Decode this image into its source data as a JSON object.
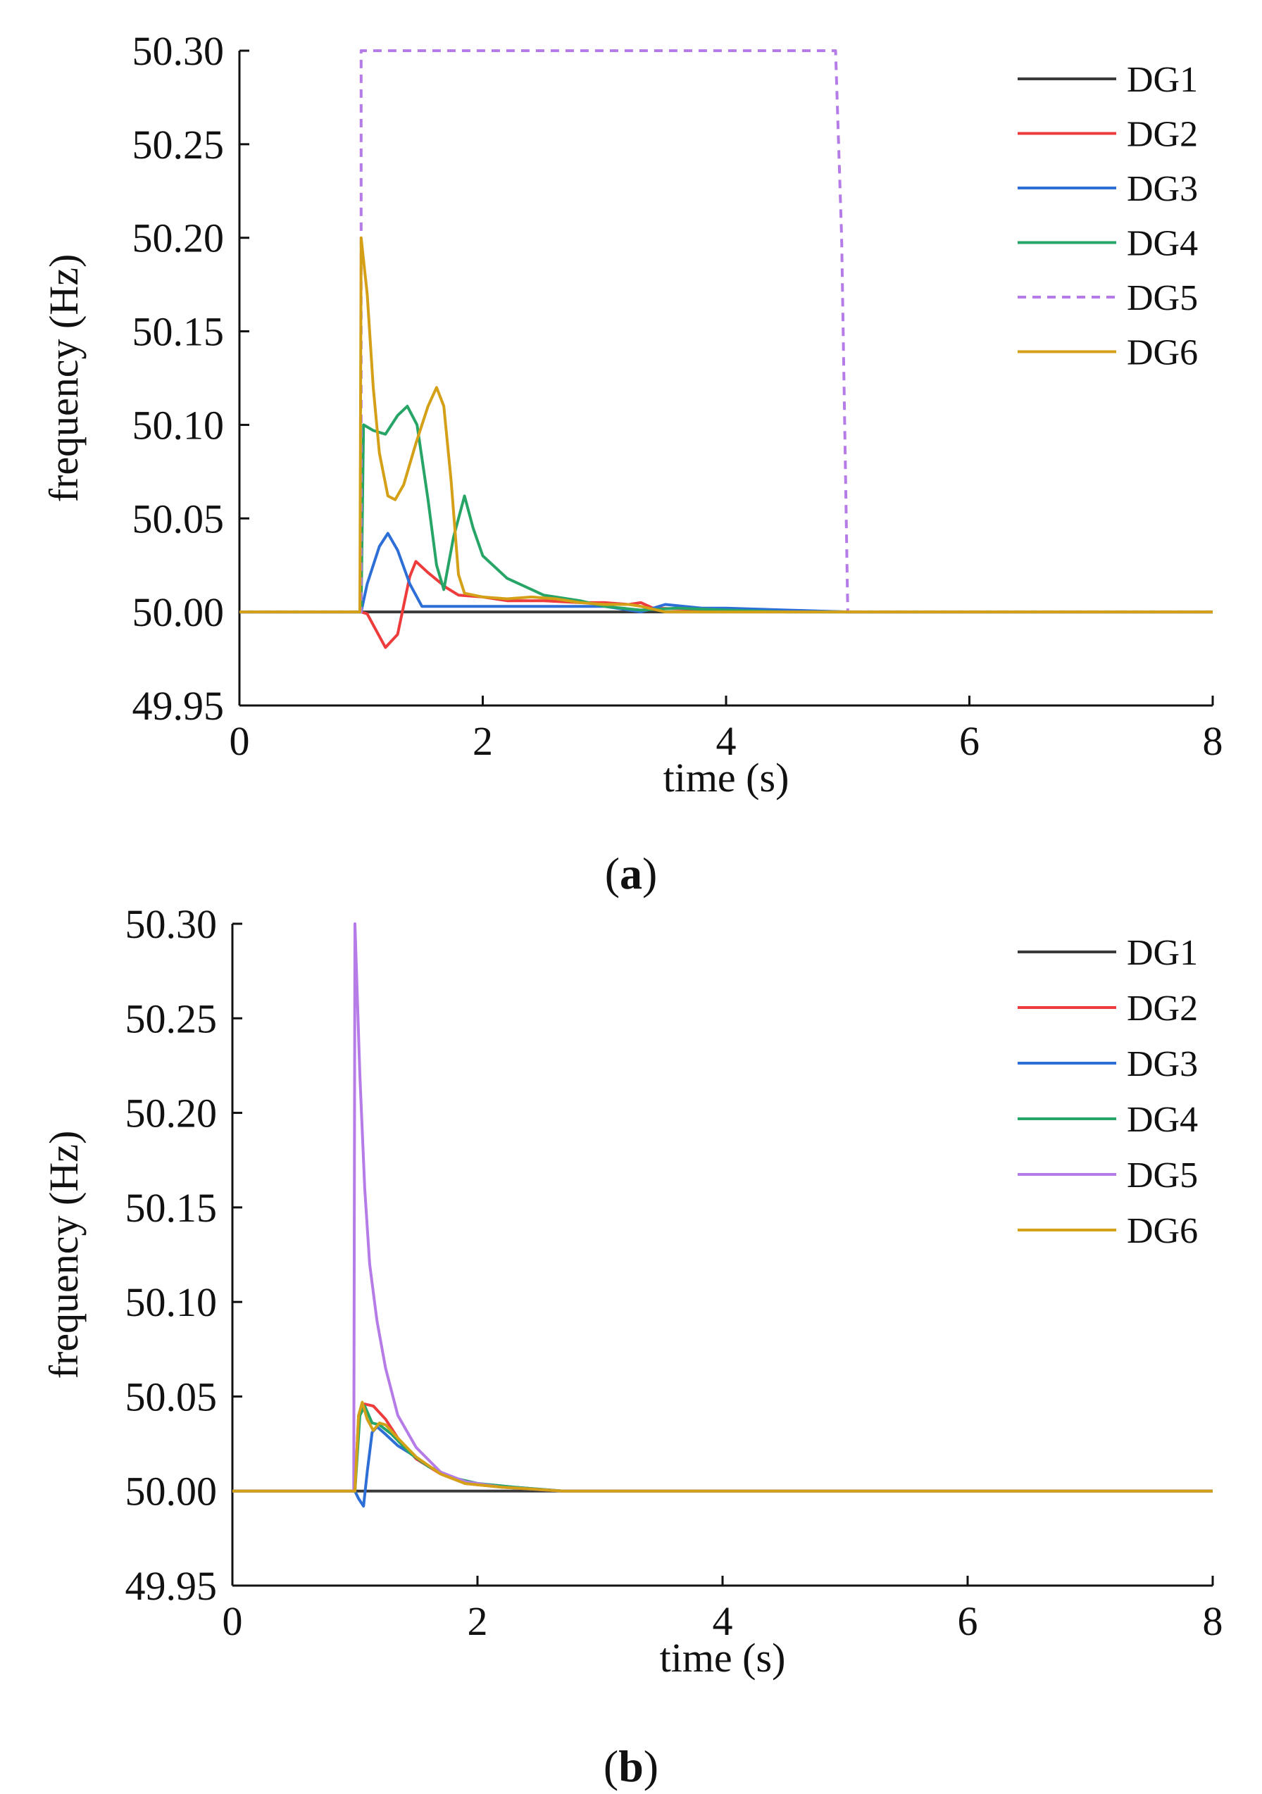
{
  "chart_data": [
    {
      "panel_label": "a",
      "type": "line",
      "xlabel": "time (s)",
      "ylabel": "frequency (Hz)",
      "xlim": [
        0,
        8
      ],
      "ylim": [
        49.95,
        50.3
      ],
      "x_ticks": [
        "0",
        "2",
        "4",
        "6",
        "8"
      ],
      "y_ticks": [
        "49.95",
        "50.00",
        "50.05",
        "50.10",
        "50.15",
        "50.20",
        "50.25",
        "50.30"
      ],
      "grid": false,
      "legend_position": "top-right",
      "series": [
        {
          "name": "DG1",
          "color": "#3a3a3a",
          "dash": "solid",
          "points": [
            [
              0,
              50.0
            ],
            [
              8,
              50.0
            ]
          ]
        },
        {
          "name": "DG2",
          "color": "#ee3b3b",
          "dash": "solid",
          "points": [
            [
              0,
              50.0
            ],
            [
              1.0,
              50.0
            ],
            [
              1.05,
              49.999
            ],
            [
              1.1,
              49.993
            ],
            [
              1.2,
              49.981
            ],
            [
              1.3,
              49.988
            ],
            [
              1.4,
              50.019
            ],
            [
              1.45,
              50.027
            ],
            [
              1.55,
              50.021
            ],
            [
              1.7,
              50.013
            ],
            [
              1.8,
              50.009
            ],
            [
              2.0,
              50.008
            ],
            [
              2.2,
              50.006
            ],
            [
              2.5,
              50.006
            ],
            [
              2.8,
              50.005
            ],
            [
              3.0,
              50.005
            ],
            [
              3.2,
              50.004
            ],
            [
              3.3,
              50.005
            ],
            [
              3.4,
              50.002
            ],
            [
              4.0,
              50.001
            ],
            [
              5.0,
              50.0
            ],
            [
              8,
              50.0
            ]
          ]
        },
        {
          "name": "DG3",
          "color": "#2d6fd6",
          "dash": "solid",
          "points": [
            [
              0,
              50.0
            ],
            [
              1.0,
              50.0
            ],
            [
              1.05,
              50.015
            ],
            [
              1.15,
              50.035
            ],
            [
              1.22,
              50.042
            ],
            [
              1.3,
              50.033
            ],
            [
              1.4,
              50.015
            ],
            [
              1.5,
              50.003
            ],
            [
              2.0,
              50.003
            ],
            [
              2.5,
              50.003
            ],
            [
              3.0,
              50.003
            ],
            [
              3.3,
              50.0
            ],
            [
              3.5,
              50.004
            ],
            [
              3.8,
              50.002
            ],
            [
              4.0,
              50.002
            ],
            [
              4.5,
              50.001
            ],
            [
              5.0,
              50.0
            ],
            [
              8,
              50.0
            ]
          ]
        },
        {
          "name": "DG4",
          "color": "#27a567",
          "dash": "solid",
          "points": [
            [
              0,
              50.0
            ],
            [
              1.0,
              50.0
            ],
            [
              1.02,
              50.1
            ],
            [
              1.1,
              50.097
            ],
            [
              1.2,
              50.095
            ],
            [
              1.3,
              50.105
            ],
            [
              1.38,
              50.11
            ],
            [
              1.46,
              50.1
            ],
            [
              1.55,
              50.06
            ],
            [
              1.62,
              50.025
            ],
            [
              1.68,
              50.012
            ],
            [
              1.76,
              50.04
            ],
            [
              1.85,
              50.062
            ],
            [
              1.92,
              50.045
            ],
            [
              2.0,
              50.03
            ],
            [
              2.2,
              50.018
            ],
            [
              2.5,
              50.009
            ],
            [
              2.8,
              50.006
            ],
            [
              3.0,
              50.003
            ],
            [
              3.3,
              50.001
            ],
            [
              3.6,
              50.002
            ],
            [
              4.0,
              50.001
            ],
            [
              4.5,
              50.0
            ],
            [
              8,
              50.0
            ]
          ]
        },
        {
          "name": "DG5",
          "color": "#b57be6",
          "dash": "dashed",
          "points": [
            [
              0,
              50.0
            ],
            [
              1.0,
              50.0
            ],
            [
              1.0,
              50.3
            ],
            [
              4.9,
              50.3
            ],
            [
              4.95,
              50.2
            ],
            [
              5.0,
              50.0
            ],
            [
              8,
              50.0
            ]
          ]
        },
        {
          "name": "DG6",
          "color": "#d4a017",
          "dash": "solid",
          "points": [
            [
              0,
              50.0
            ],
            [
              0.99,
              50.0
            ],
            [
              1.0,
              50.2
            ],
            [
              1.05,
              50.17
            ],
            [
              1.1,
              50.12
            ],
            [
              1.15,
              50.085
            ],
            [
              1.22,
              50.062
            ],
            [
              1.28,
              50.06
            ],
            [
              1.35,
              50.068
            ],
            [
              1.45,
              50.09
            ],
            [
              1.55,
              50.11
            ],
            [
              1.62,
              50.12
            ],
            [
              1.68,
              50.11
            ],
            [
              1.74,
              50.07
            ],
            [
              1.8,
              50.02
            ],
            [
              1.85,
              50.01
            ],
            [
              2.0,
              50.008
            ],
            [
              2.2,
              50.007
            ],
            [
              2.4,
              50.008
            ],
            [
              2.6,
              50.007
            ],
            [
              2.8,
              50.005
            ],
            [
              3.0,
              50.004
            ],
            [
              3.2,
              50.004
            ],
            [
              3.3,
              50.003
            ],
            [
              3.5,
              50.0
            ],
            [
              8,
              50.0
            ]
          ]
        }
      ]
    },
    {
      "panel_label": "b",
      "type": "line",
      "xlabel": "time (s)",
      "ylabel": "frequency (Hz)",
      "xlim": [
        0,
        8
      ],
      "ylim": [
        49.95,
        50.3
      ],
      "x_ticks": [
        "0",
        "2",
        "4",
        "6",
        "8"
      ],
      "y_ticks": [
        "49.95",
        "50.00",
        "50.05",
        "50.10",
        "50.15",
        "50.20",
        "50.25",
        "50.30"
      ],
      "grid": false,
      "legend_position": "top-right",
      "series": [
        {
          "name": "DG1",
          "color": "#3a3a3a",
          "dash": "solid",
          "points": [
            [
              0,
              50.0
            ],
            [
              8,
              50.0
            ]
          ]
        },
        {
          "name": "DG2",
          "color": "#ee3b3b",
          "dash": "solid",
          "points": [
            [
              0,
              50.0
            ],
            [
              1.0,
              50.0
            ],
            [
              1.03,
              50.04
            ],
            [
              1.08,
              50.046
            ],
            [
              1.15,
              50.045
            ],
            [
              1.25,
              50.038
            ],
            [
              1.35,
              50.028
            ],
            [
              1.5,
              50.017
            ],
            [
              1.7,
              50.009
            ],
            [
              1.9,
              50.004
            ],
            [
              2.2,
              50.002
            ],
            [
              2.7,
              50.0
            ],
            [
              8,
              50.0
            ]
          ]
        },
        {
          "name": "DG3",
          "color": "#2d6fd6",
          "dash": "solid",
          "points": [
            [
              0,
              50.0
            ],
            [
              1.0,
              50.0
            ],
            [
              1.03,
              49.996
            ],
            [
              1.07,
              49.992
            ],
            [
              1.1,
              50.01
            ],
            [
              1.14,
              50.031
            ],
            [
              1.18,
              50.034
            ],
            [
              1.25,
              50.03
            ],
            [
              1.35,
              50.024
            ],
            [
              1.45,
              50.02
            ],
            [
              1.6,
              50.013
            ],
            [
              1.8,
              50.007
            ],
            [
              2.0,
              50.004
            ],
            [
              2.3,
              50.002
            ],
            [
              2.7,
              50.0
            ],
            [
              8,
              50.0
            ]
          ]
        },
        {
          "name": "DG4",
          "color": "#27a567",
          "dash": "solid",
          "points": [
            [
              0,
              50.0
            ],
            [
              1.0,
              50.0
            ],
            [
              1.04,
              50.04
            ],
            [
              1.08,
              50.045
            ],
            [
              1.14,
              50.036
            ],
            [
              1.2,
              50.035
            ],
            [
              1.3,
              50.03
            ],
            [
              1.45,
              50.02
            ],
            [
              1.6,
              50.013
            ],
            [
              1.8,
              50.007
            ],
            [
              2.0,
              50.004
            ],
            [
              2.3,
              50.002
            ],
            [
              2.7,
              50.0
            ],
            [
              8,
              50.0
            ]
          ]
        },
        {
          "name": "DG5",
          "color": "#b57be6",
          "dash": "solid",
          "points": [
            [
              0,
              50.0
            ],
            [
              0.99,
              50.0
            ],
            [
              1.0,
              50.3
            ],
            [
              1.04,
              50.22
            ],
            [
              1.08,
              50.16
            ],
            [
              1.12,
              50.12
            ],
            [
              1.18,
              50.09
            ],
            [
              1.25,
              50.065
            ],
            [
              1.35,
              50.04
            ],
            [
              1.5,
              50.023
            ],
            [
              1.7,
              50.01
            ],
            [
              1.9,
              50.005
            ],
            [
              2.2,
              50.002
            ],
            [
              2.7,
              50.0
            ],
            [
              8,
              50.0
            ]
          ]
        },
        {
          "name": "DG6",
          "color": "#d4a017",
          "dash": "solid",
          "points": [
            [
              0,
              50.0
            ],
            [
              1.0,
              50.0
            ],
            [
              1.03,
              50.04
            ],
            [
              1.06,
              50.047
            ],
            [
              1.1,
              50.038
            ],
            [
              1.15,
              50.032
            ],
            [
              1.2,
              50.036
            ],
            [
              1.25,
              50.035
            ],
            [
              1.35,
              50.028
            ],
            [
              1.5,
              50.018
            ],
            [
              1.7,
              50.009
            ],
            [
              1.9,
              50.004
            ],
            [
              2.2,
              50.002
            ],
            [
              2.7,
              50.0
            ],
            [
              8,
              50.0
            ]
          ]
        }
      ]
    }
  ]
}
